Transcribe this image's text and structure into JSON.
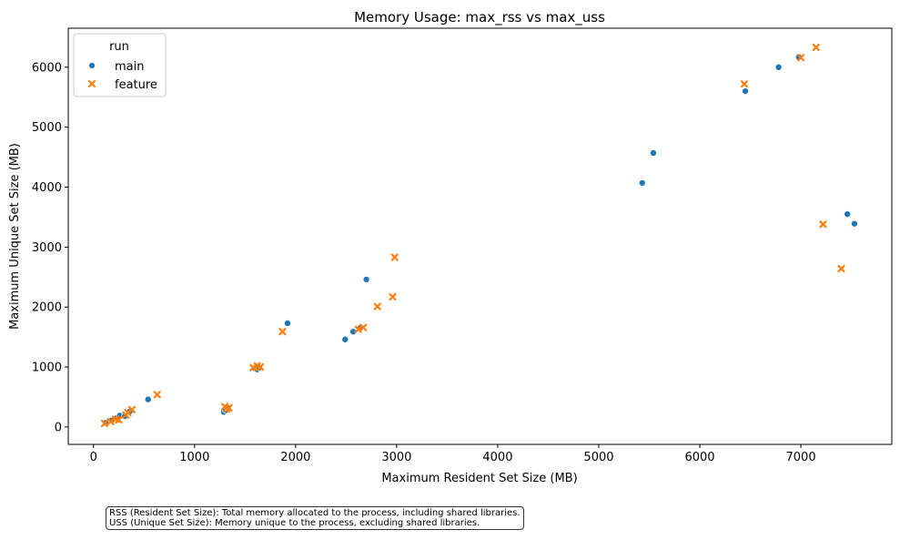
{
  "chart_data": {
    "type": "scatter",
    "title": "Memory Usage: max_rss vs max_uss",
    "xlabel": "Maximum Resident Set Size (MB)",
    "ylabel": "Maximum Unique Set Size (MB)",
    "xlim": [
      -250,
      7900
    ],
    "ylim": [
      -290,
      6650
    ],
    "xticks": [
      0,
      1000,
      2000,
      3000,
      4000,
      5000,
      6000,
      7000
    ],
    "yticks": [
      0,
      1000,
      2000,
      3000,
      4000,
      5000,
      6000
    ],
    "grid": false,
    "legend": {
      "title": "run",
      "placement": "top-left"
    },
    "series": [
      {
        "name": "main",
        "marker": "circle",
        "color": "#1f77b4",
        "points": [
          [
            120,
            70
          ],
          [
            180,
            110
          ],
          [
            230,
            150
          ],
          [
            260,
            190
          ],
          [
            310,
            180
          ],
          [
            360,
            260
          ],
          [
            540,
            460
          ],
          [
            1290,
            250
          ],
          [
            1310,
            280
          ],
          [
            1330,
            320
          ],
          [
            1600,
            970
          ],
          [
            1620,
            960
          ],
          [
            1640,
            990
          ],
          [
            1920,
            1730
          ],
          [
            2490,
            1460
          ],
          [
            2570,
            1590
          ],
          [
            2640,
            1650
          ],
          [
            2700,
            2460
          ],
          [
            5430,
            4070
          ],
          [
            5540,
            4570
          ],
          [
            6450,
            5600
          ],
          [
            6780,
            6000
          ],
          [
            6980,
            6170
          ],
          [
            7460,
            3550
          ],
          [
            7530,
            3390
          ]
        ]
      },
      {
        "name": "feature",
        "marker": "x",
        "color": "#ff7f0e",
        "points": [
          [
            110,
            60
          ],
          [
            170,
            90
          ],
          [
            220,
            130
          ],
          [
            250,
            120
          ],
          [
            320,
            200
          ],
          [
            340,
            240
          ],
          [
            380,
            290
          ],
          [
            630,
            540
          ],
          [
            1300,
            340
          ],
          [
            1320,
            300
          ],
          [
            1340,
            320
          ],
          [
            1580,
            990
          ],
          [
            1620,
            1020
          ],
          [
            1650,
            1000
          ],
          [
            1870,
            1590
          ],
          [
            2620,
            1630
          ],
          [
            2670,
            1660
          ],
          [
            2810,
            2010
          ],
          [
            2960,
            2170
          ],
          [
            2980,
            2830
          ],
          [
            6440,
            5720
          ],
          [
            7000,
            6160
          ],
          [
            7150,
            6330
          ],
          [
            7220,
            3380
          ],
          [
            7400,
            2640
          ]
        ]
      }
    ]
  },
  "note": {
    "line1": "RSS (Resident Set Size): Total memory allocated to the process, including shared libraries.",
    "line2": "USS (Unique Set Size): Memory unique to the process, excluding shared libraries."
  }
}
